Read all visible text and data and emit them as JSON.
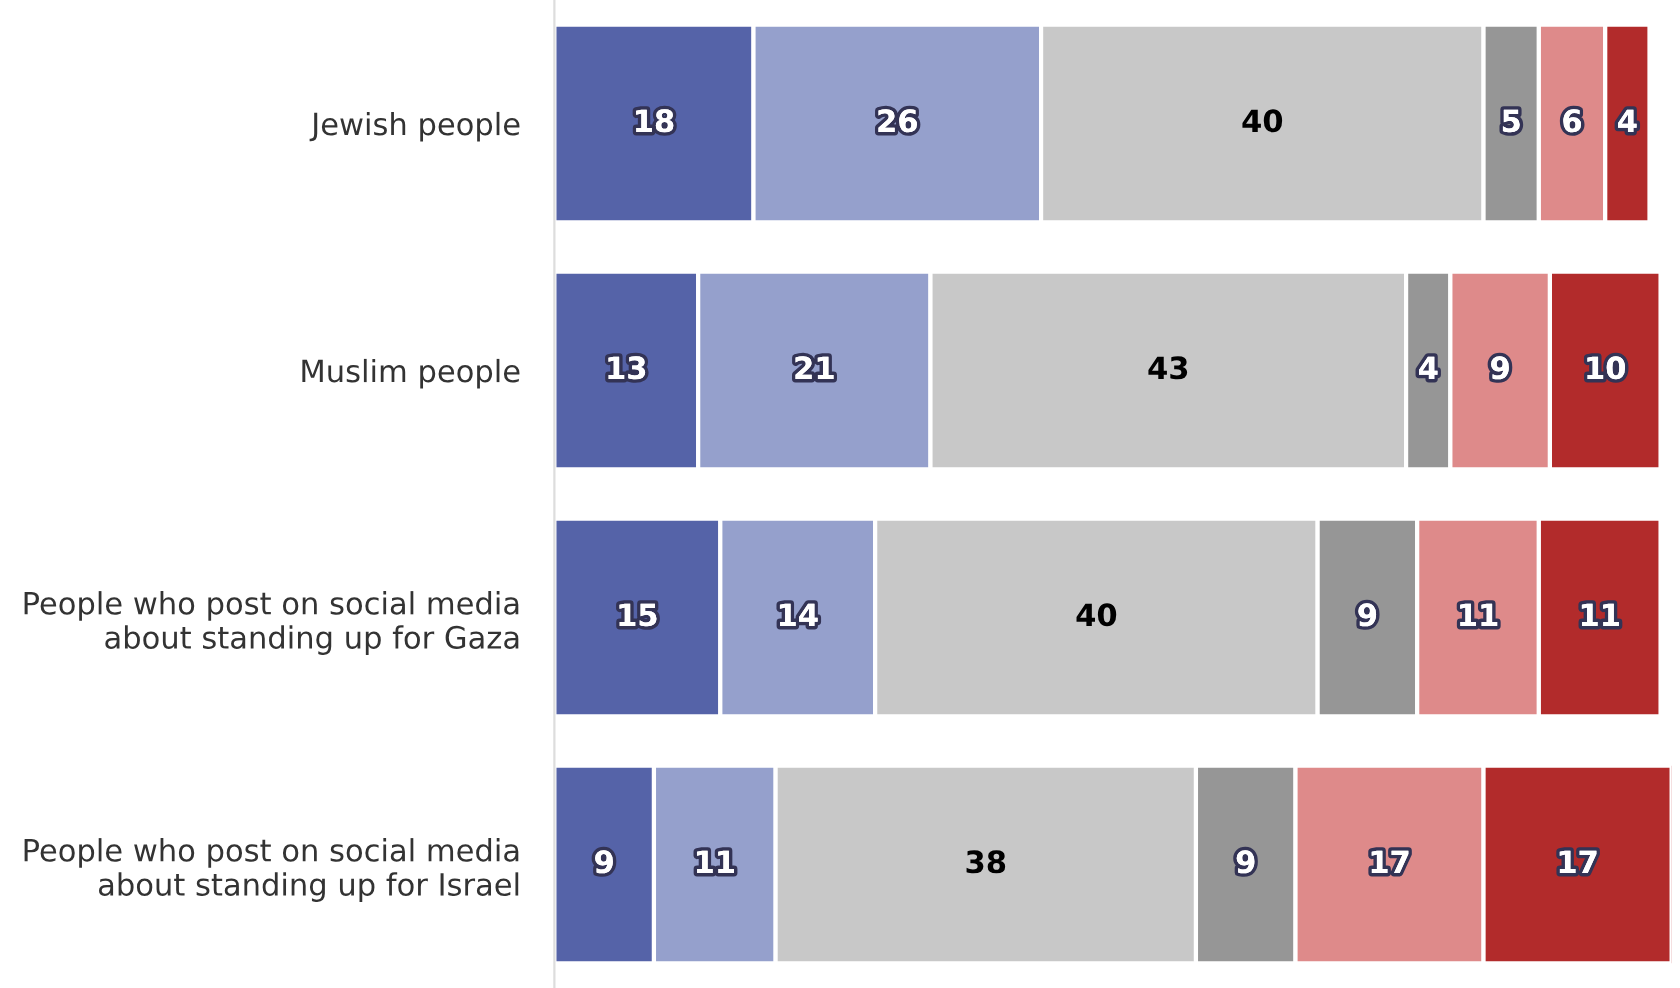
{
  "chart_data": {
    "type": "bar",
    "orientation": "horizontal",
    "stacked": true,
    "data_labels": true,
    "grid": false,
    "legend": false,
    "tick_labels": "y",
    "categories": [
      "Jewish people",
      "Muslim people",
      "People who post on social media\nabout standing up for Gaza",
      "People who post on social media\nabout standing up for Israel"
    ],
    "series": [
      {
        "color": "#5563a8",
        "values": [
          18,
          13,
          15,
          9
        ]
      },
      {
        "color": "#95a0cc",
        "values": [
          26,
          21,
          14,
          11
        ]
      },
      {
        "color": "#c8c8c8",
        "values": [
          40,
          43,
          40,
          38
        ]
      },
      {
        "color": "#969696",
        "values": [
          5,
          4,
          9,
          9
        ]
      },
      {
        "color": "#de8a8a",
        "values": [
          6,
          9,
          11,
          17
        ]
      },
      {
        "color": "#b22b2b",
        "values": [
          4,
          10,
          11,
          17
        ]
      }
    ]
  }
}
